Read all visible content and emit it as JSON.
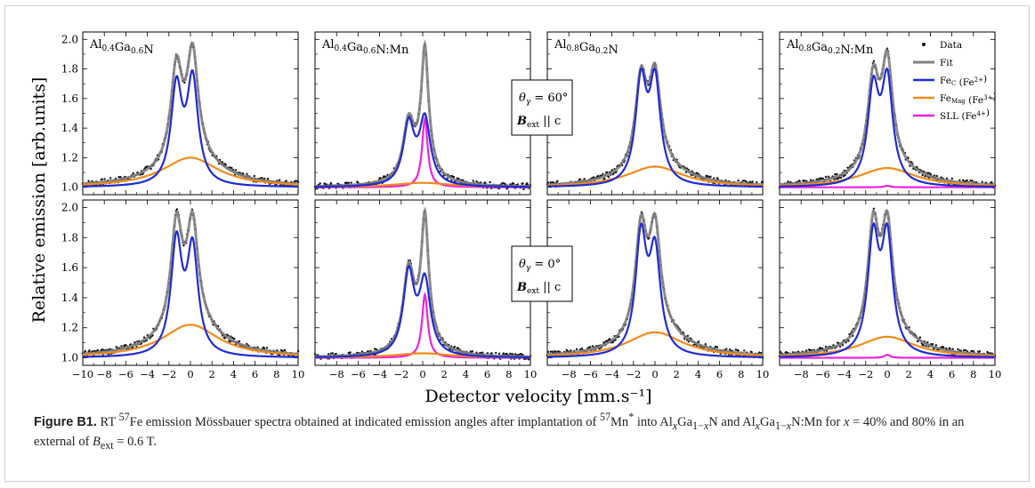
{
  "figure": {
    "ylabel": "Relative emission [arb.units]",
    "xlabel": "Detector velocity [mm.s⁻¹]",
    "xticks": [
      -10,
      -8,
      -6,
      -4,
      -2,
      0,
      2,
      4,
      6,
      8,
      10
    ],
    "yticks": [
      1.0,
      1.2,
      1.4,
      1.6,
      1.8,
      2.0
    ],
    "angle_row1": "θγ = 60°",
    "angle_row2": "θγ = 0°",
    "bfield_label": "Bext || c",
    "legend": [
      "Data",
      "Fit",
      "FeC (Fe2+)",
      "FeMag (Fe3+)",
      "SLL (Fe4+)"
    ],
    "colors": {
      "data": "#111111",
      "fit": "#7f7f7f",
      "fec": "#1f2bd6",
      "femag": "#f28b1a",
      "sll": "#ee22dd"
    }
  },
  "caption": {
    "label": "Figure B1.",
    "text": "RT 57Fe emission Mössbauer spectra obtained at indicated emission angles after implantation of 57Mn* into AlxGa1−xN and AlxGa1−xN:Mn for x = 40% and 80% in an external of Bext = 0.6 T."
  },
  "chart_data": {
    "type": "line",
    "xlabel": "Detector velocity [mm.s-1]",
    "ylabel": "Relative emission [arb.units]",
    "xlim": [
      -10,
      10
    ],
    "ylim": [
      0.95,
      2.05
    ],
    "panels": [
      {
        "row": "θγ = 60°",
        "sample": "Al0.4Ga0.6N",
        "fit_peaks": {
          "left": [
            -1.3,
            1.89
          ],
          "right": [
            0.2,
            1.98
          ]
        },
        "fec_peaks": [
          [
            -1.3,
            1.75
          ],
          [
            0.2,
            1.79
          ]
        ],
        "femag_max": [
          0.0,
          1.2
        ],
        "sll_max": null
      },
      {
        "row": "θγ = 60°",
        "sample": "Al0.4Ga0.6N:Mn",
        "fit_peaks": {
          "left": [
            -1.3,
            1.5
          ],
          "right": [
            0.2,
            1.97
          ]
        },
        "fec_peaks": [
          [
            -1.3,
            1.47
          ],
          [
            0.2,
            1.5
          ]
        ],
        "femag_max": [
          0.0,
          1.03
        ],
        "sll_max": [
          0.2,
          1.46
        ]
      },
      {
        "row": "θγ = 60°",
        "sample": "Al0.8Ga0.2N",
        "fit_peaks": {
          "left": [
            -1.3,
            1.83
          ],
          "right": [
            0.0,
            1.85
          ]
        },
        "fec_peaks": [
          [
            -1.3,
            1.8
          ],
          [
            0.0,
            1.8
          ]
        ],
        "femag_max": [
          0.0,
          1.14
        ],
        "sll_max": null
      },
      {
        "row": "θγ = 60°",
        "sample": "Al0.8Ga0.2N:Mn",
        "fit_peaks": {
          "left": [
            -1.3,
            1.83
          ],
          "right": [
            0.0,
            1.93
          ]
        },
        "fec_peaks": [
          [
            -1.3,
            1.75
          ],
          [
            0.0,
            1.8
          ]
        ],
        "femag_max": [
          0.0,
          1.13
        ],
        "sll_max": [
          0.0,
          1.01
        ]
      },
      {
        "row": "θγ = 0°",
        "sample": "Al0.4Ga0.6N",
        "fit_peaks": {
          "left": [
            -1.3,
            1.97
          ],
          "right": [
            0.2,
            1.98
          ]
        },
        "fec_peaks": [
          [
            -1.3,
            1.84
          ],
          [
            0.2,
            1.8
          ]
        ],
        "femag_max": [
          0.0,
          1.22
        ],
        "sll_max": null
      },
      {
        "row": "θγ = 0°",
        "sample": "Al0.4Ga0.6N:Mn",
        "fit_peaks": {
          "left": [
            -1.3,
            1.64
          ],
          "right": [
            0.2,
            1.98
          ]
        },
        "fec_peaks": [
          [
            -1.3,
            1.61
          ],
          [
            0.2,
            1.56
          ]
        ],
        "femag_max": [
          0.0,
          1.03
        ],
        "sll_max": [
          0.2,
          1.42
        ]
      },
      {
        "row": "θγ = 0°",
        "sample": "Al0.8Ga0.2N",
        "fit_peaks": {
          "left": [
            -1.3,
            1.95
          ],
          "right": [
            0.0,
            1.97
          ]
        },
        "fec_peaks": [
          [
            -1.3,
            1.89
          ],
          [
            0.0,
            1.8
          ]
        ],
        "femag_max": [
          0.0,
          1.17
        ],
        "sll_max": null
      },
      {
        "row": "θγ = 0°",
        "sample": "Al0.8Ga0.2N:Mn",
        "fit_peaks": {
          "left": [
            -1.3,
            1.98
          ],
          "right": [
            0.0,
            1.98
          ]
        },
        "fec_peaks": [
          [
            -1.3,
            1.89
          ],
          [
            0.0,
            1.89
          ]
        ],
        "femag_max": [
          0.0,
          1.14
        ],
        "sll_max": [
          0.0,
          1.02
        ]
      }
    ]
  }
}
